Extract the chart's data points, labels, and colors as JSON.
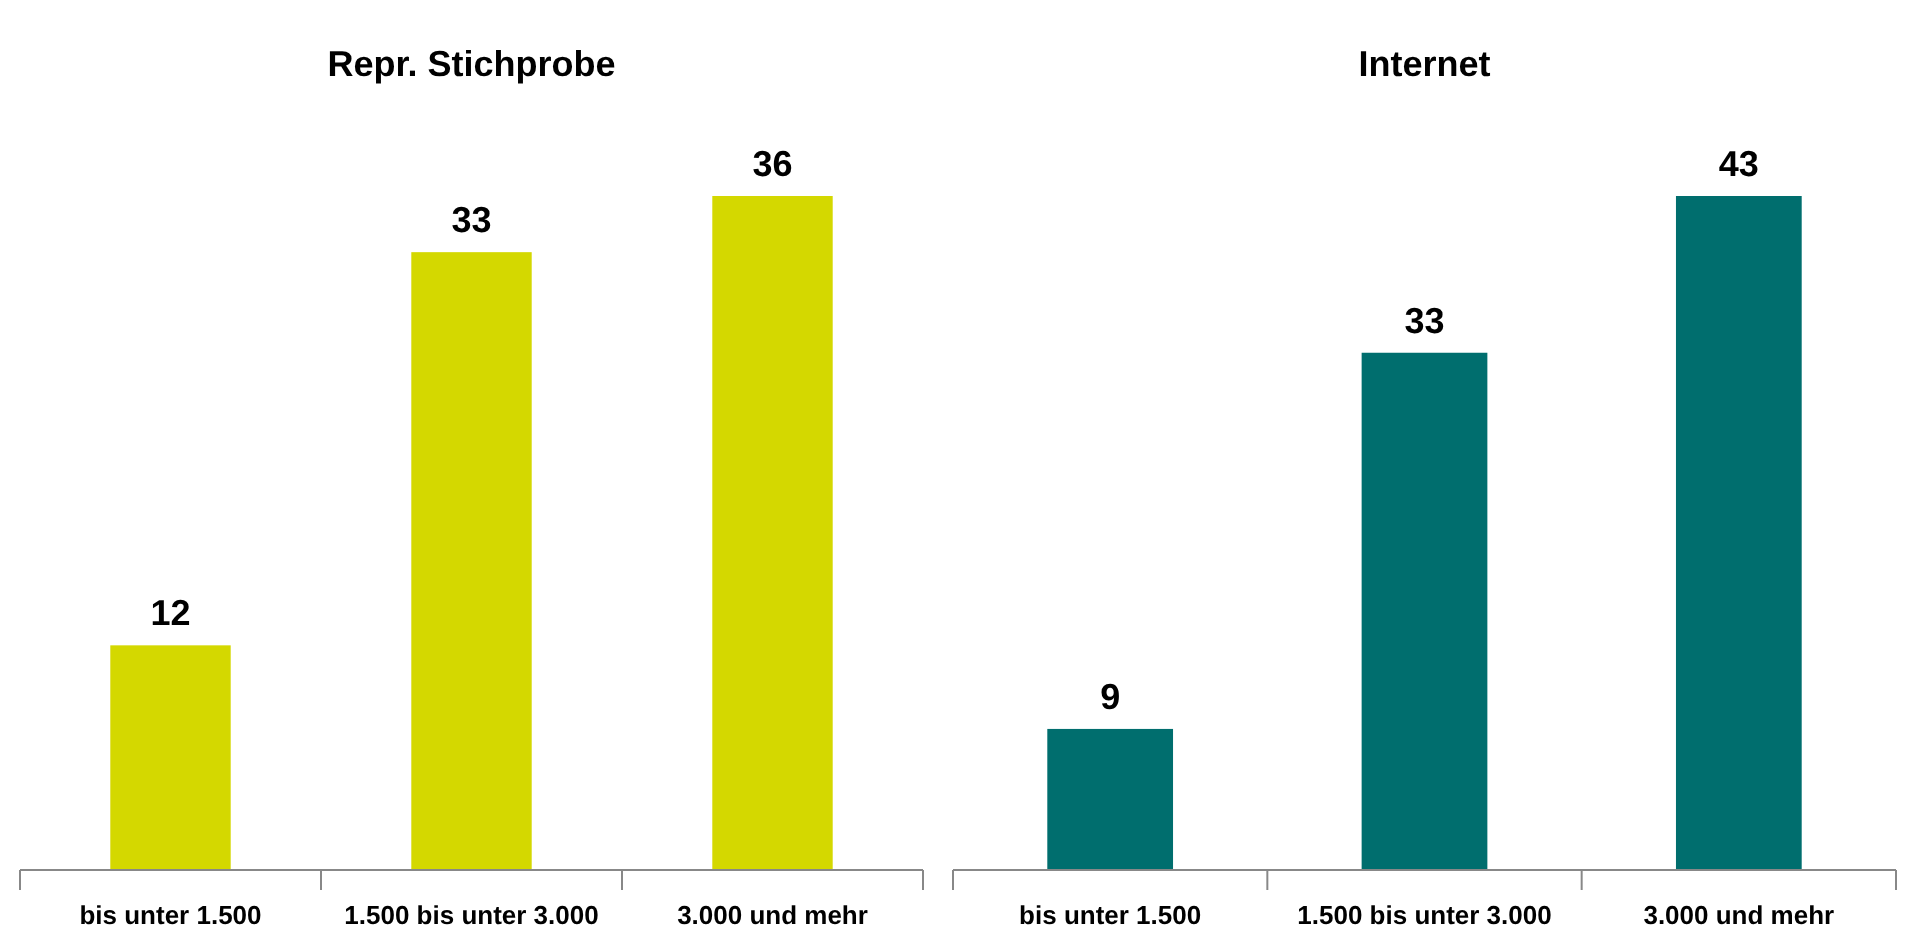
{
  "chart_data": [
    {
      "type": "bar",
      "title": "Repr. Stichprobe",
      "categories": [
        "bis unter 1.500",
        "1.500 bis unter 3.000",
        "3.000 und mehr"
      ],
      "values": [
        12,
        33,
        36
      ],
      "color": "#d4d800",
      "data_labels": true
    },
    {
      "type": "bar",
      "title": "Internet",
      "categories": [
        "bis unter 1.500",
        "1.500 bis unter 3.000",
        "3.000 und mehr"
      ],
      "values": [
        9,
        33,
        43
      ],
      "color": "#006e6e",
      "data_labels": true
    }
  ]
}
